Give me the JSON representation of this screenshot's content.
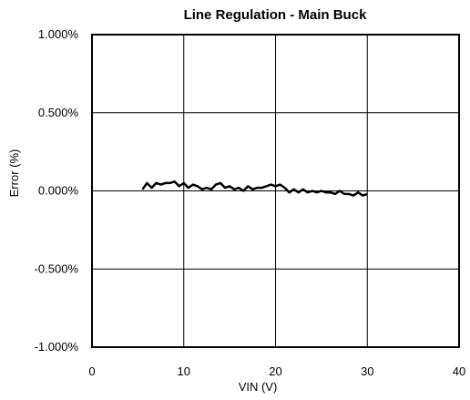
{
  "chart_data": {
    "type": "line",
    "title": "Line Regulation - Main Buck",
    "xlabel": "VIN (V)",
    "ylabel": "Error (%)",
    "xlim": [
      0,
      40
    ],
    "ylim": [
      -1.0,
      1.0
    ],
    "x_ticks": [
      0,
      10,
      20,
      30,
      40
    ],
    "x_tick_labels": [
      "0",
      "10",
      "20",
      "30",
      "40"
    ],
    "y_ticks": [
      1.0,
      0.5,
      0.0,
      -0.5,
      -1.0
    ],
    "y_tick_labels": [
      "1.000%",
      "0.500%",
      "0.000%",
      "-0.500%",
      "-1.000%"
    ],
    "grid": true,
    "series": [
      {
        "color": "#000000",
        "x": [
          5.5,
          6.0,
          6.5,
          7.0,
          7.5,
          8.0,
          8.5,
          9.0,
          9.5,
          10.0,
          10.5,
          11.0,
          11.5,
          12.0,
          12.5,
          13.0,
          13.5,
          14.0,
          14.5,
          15.0,
          15.5,
          16.0,
          16.5,
          17.0,
          17.5,
          18.0,
          18.5,
          19.0,
          19.5,
          20.0,
          20.5,
          21.0,
          21.5,
          22.0,
          22.5,
          23.0,
          23.5,
          24.0,
          24.5,
          25.0,
          25.5,
          26.0,
          26.5,
          27.0,
          27.5,
          28.0,
          28.5,
          29.0,
          29.5,
          30.0
        ],
        "y": [
          0.01,
          0.05,
          0.02,
          0.05,
          0.04,
          0.05,
          0.05,
          0.06,
          0.03,
          0.05,
          0.02,
          0.04,
          0.03,
          0.01,
          0.02,
          0.01,
          0.04,
          0.05,
          0.02,
          0.03,
          0.01,
          0.02,
          0.0,
          0.03,
          0.01,
          0.02,
          0.02,
          0.03,
          0.04,
          0.03,
          0.04,
          0.02,
          -0.01,
          0.01,
          -0.01,
          0.01,
          -0.01,
          0.0,
          -0.01,
          0.0,
          -0.01,
          -0.01,
          -0.02,
          0.0,
          -0.02,
          -0.02,
          -0.03,
          -0.01,
          -0.03,
          -0.02
        ]
      }
    ]
  }
}
